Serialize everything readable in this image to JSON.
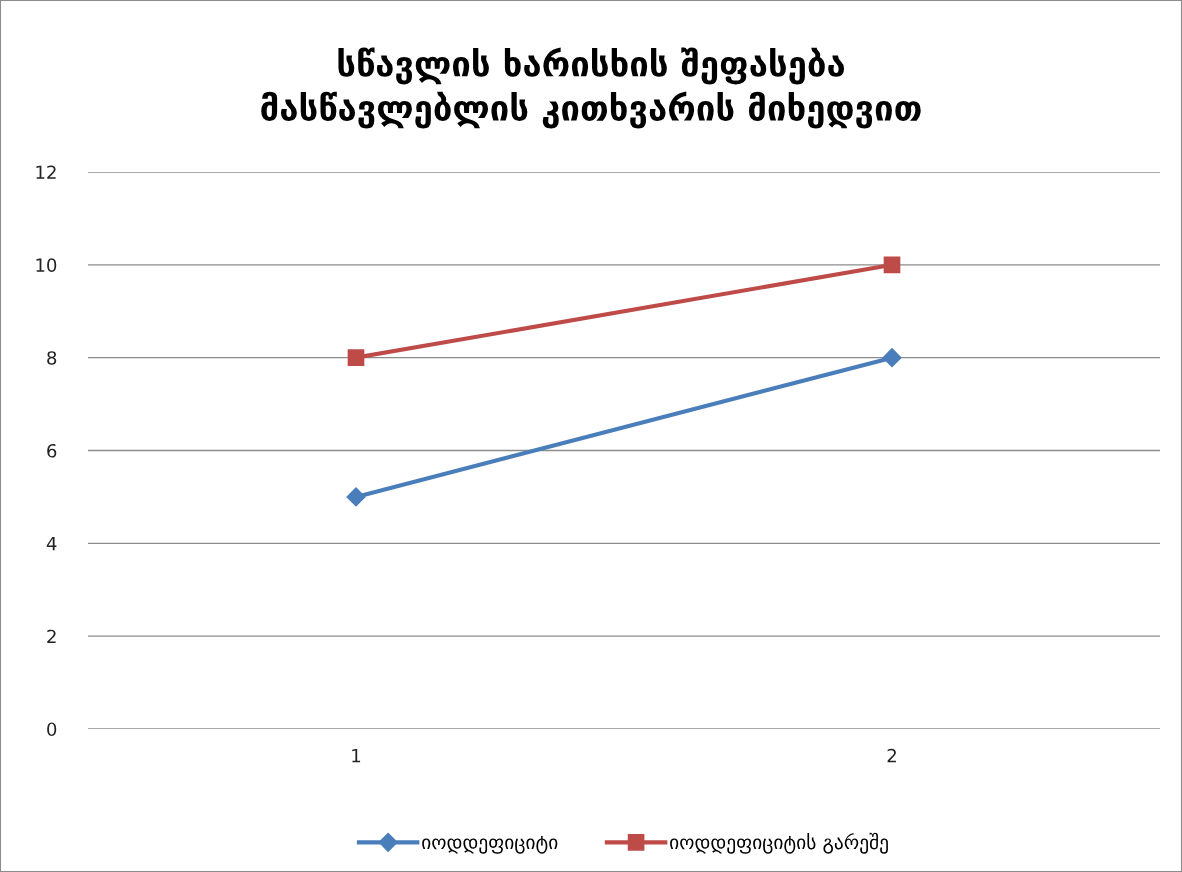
{
  "chart_data": {
    "type": "line",
    "title": "სწავლის ხარისხის შეფასება\nმასწავლებლის კითხვარის მიხედვით",
    "categories": [
      "1",
      "2"
    ],
    "series": [
      {
        "name": "იოდდეფიციტი",
        "color": "#4a7ebb",
        "values": [
          5,
          8
        ],
        "marker": "diamond"
      },
      {
        "name": "იოდდეფიციტის გარეშე",
        "color": "#be4b48",
        "values": [
          8,
          10
        ],
        "marker": "square"
      }
    ],
    "ylim": [
      0,
      12
    ],
    "yticks": [
      0,
      2,
      4,
      6,
      8,
      10,
      12
    ],
    "grid": "y",
    "legend": "bottom",
    "line_style": "solid"
  }
}
